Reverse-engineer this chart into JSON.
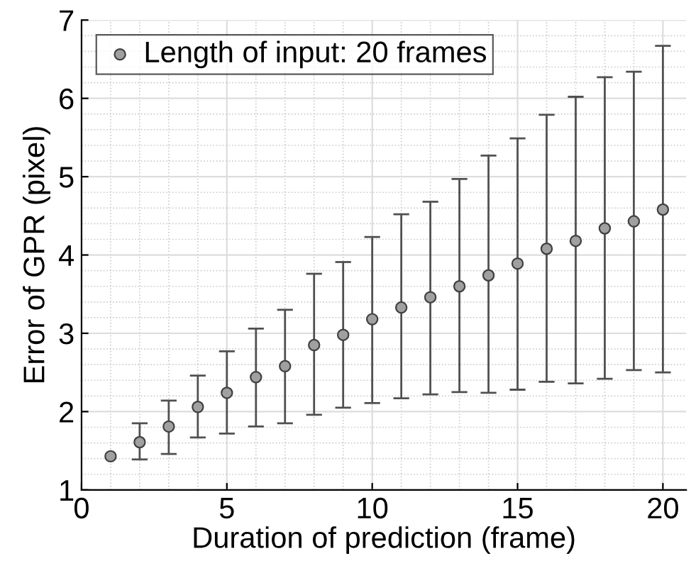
{
  "chart_data": {
    "type": "scatter",
    "xlabel": "Duration of prediction (frame)",
    "ylabel": "Error of GPR (pixel)",
    "x": [
      1,
      2,
      3,
      4,
      5,
      6,
      7,
      8,
      9,
      10,
      11,
      12,
      13,
      14,
      15,
      16,
      17,
      18,
      19,
      20
    ],
    "series": [
      {
        "name": "Length of input: 20 frames",
        "color": "#a0a0a0",
        "values": [
          1.43,
          1.61,
          1.81,
          2.06,
          2.24,
          2.44,
          2.58,
          2.85,
          2.98,
          3.18,
          3.33,
          3.46,
          3.6,
          3.74,
          3.89,
          4.08,
          4.18,
          4.34,
          4.43,
          4.58
        ],
        "errors": [
          null,
          [
            1.39,
            1.85
          ],
          [
            1.46,
            2.14
          ],
          [
            1.67,
            2.46
          ],
          [
            1.72,
            2.77
          ],
          [
            1.81,
            3.06
          ],
          [
            1.85,
            3.3
          ],
          [
            1.96,
            3.76
          ],
          [
            2.05,
            3.91
          ],
          [
            2.11,
            4.23
          ],
          [
            2.17,
            4.52
          ],
          [
            2.22,
            4.68
          ],
          [
            2.25,
            4.97
          ],
          [
            2.24,
            5.27
          ],
          [
            2.28,
            5.49
          ],
          [
            2.38,
            5.79
          ],
          [
            2.36,
            6.02
          ],
          [
            2.42,
            6.27
          ],
          [
            2.53,
            6.34
          ],
          [
            2.5,
            6.67
          ]
        ]
      }
    ],
    "xlim": [
      0,
      20.8
    ],
    "xticks": [
      0,
      5,
      10,
      15,
      20
    ],
    "ylim": [
      1,
      7
    ],
    "yticks": [
      1,
      2,
      3,
      4,
      5,
      6,
      7
    ],
    "grid": true,
    "legend": "top left",
    "marker": "circle"
  }
}
